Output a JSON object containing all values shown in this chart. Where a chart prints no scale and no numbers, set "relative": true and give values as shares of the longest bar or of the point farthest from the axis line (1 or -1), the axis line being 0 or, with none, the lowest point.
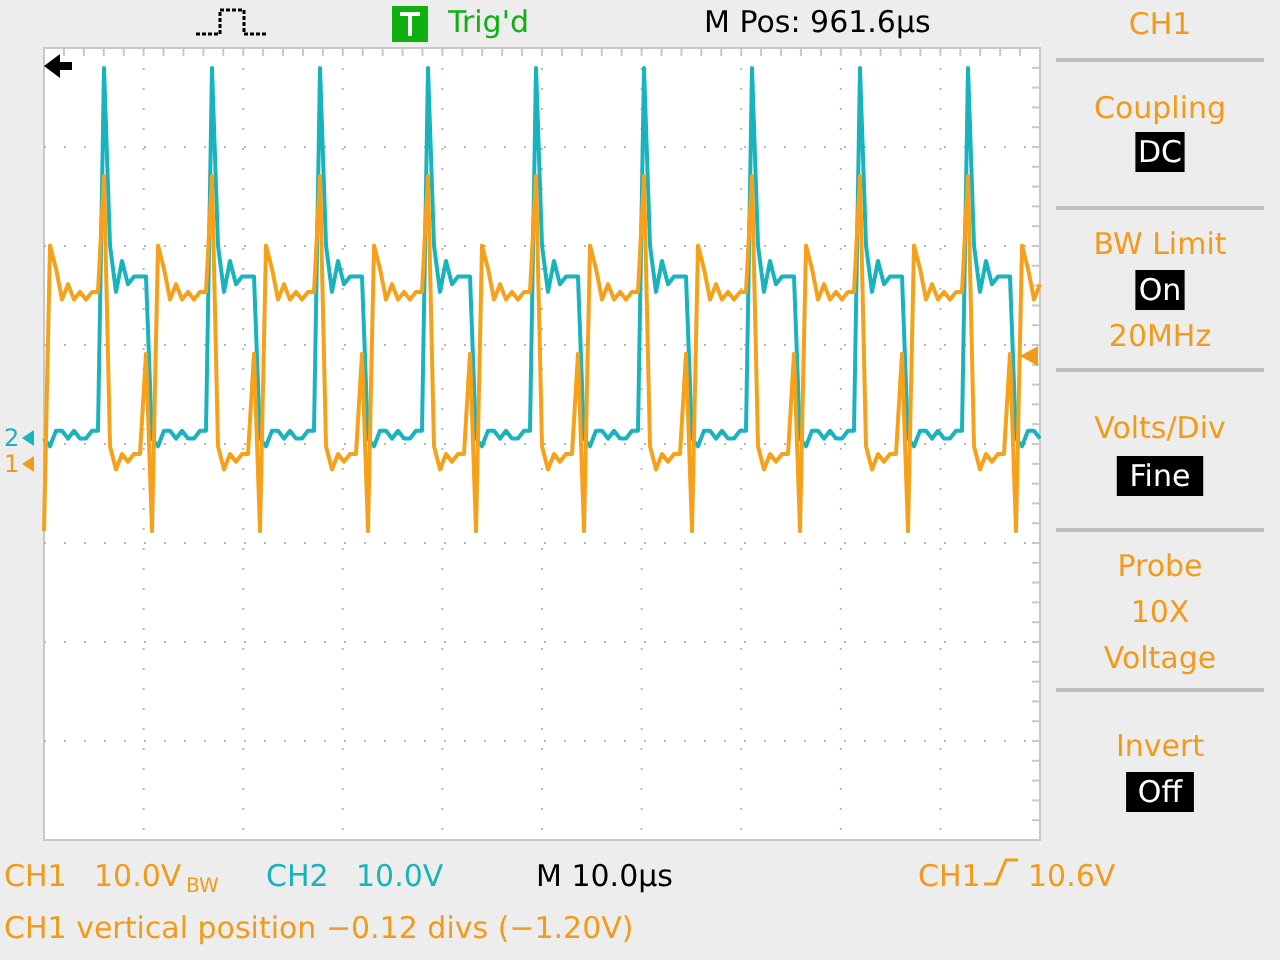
{
  "chart_data": {
    "type": "line",
    "relative": true,
    "grid": true,
    "line_style": "solid",
    "categories": [
      null,
      null,
      null,
      null,
      null,
      null,
      null,
      null,
      null,
      null,
      null,
      null,
      null,
      null,
      null,
      null,
      null,
      null,
      null,
      null,
      null,
      null,
      null,
      null,
      null,
      null,
      null,
      null,
      null,
      null,
      null,
      null,
      null,
      null,
      null,
      null,
      null,
      null,
      null,
      null,
      null,
      null,
      null,
      null,
      null,
      null,
      null,
      null,
      null,
      null,
      null,
      null,
      null,
      null,
      null,
      null,
      null,
      null,
      null,
      null,
      null,
      null,
      null,
      null,
      null,
      null,
      null,
      null,
      null,
      null,
      null,
      null,
      null,
      null,
      null,
      null,
      null,
      null,
      null,
      null,
      null,
      null,
      null,
      null,
      null,
      null,
      null,
      null,
      null,
      null,
      null,
      null,
      null,
      null,
      null,
      null,
      null,
      null,
      null,
      null,
      null,
      null,
      null,
      null,
      null,
      null,
      null,
      null,
      null,
      null,
      null,
      null,
      null,
      null,
      null,
      null,
      null,
      null,
      null,
      null,
      null,
      null,
      null,
      null,
      null,
      null,
      null,
      null,
      null,
      null,
      null,
      null,
      null,
      null,
      null,
      null,
      null,
      null,
      null,
      null,
      null,
      null,
      null,
      null,
      null,
      null,
      null,
      null,
      null,
      null,
      null,
      null,
      null,
      null,
      null,
      null,
      null,
      null,
      null,
      null,
      null,
      null,
      null,
      null,
      null,
      null,
      null
    ],
    "series": [
      {
        "color": "#19b3bd",
        "values": [
          0.52,
          0.51,
          0.53,
          0.53,
          0.52,
          0.53,
          0.52,
          0.52,
          0.53,
          0.53,
          1.0,
          0.77,
          0.71,
          0.75,
          0.72,
          0.73,
          0.73,
          0.73,
          0.52,
          0.51,
          0.53,
          0.53,
          0.52,
          0.53,
          0.52,
          0.52,
          0.53,
          0.53,
          1.0,
          0.77,
          0.71,
          0.75,
          0.72,
          0.73,
          0.73,
          0.73,
          0.52,
          0.51,
          0.53,
          0.53,
          0.52,
          0.53,
          0.52,
          0.52,
          0.53,
          0.53,
          1.0,
          0.77,
          0.71,
          0.75,
          0.72,
          0.73,
          0.73,
          0.73,
          0.52,
          0.51,
          0.53,
          0.53,
          0.52,
          0.53,
          0.52,
          0.52,
          0.53,
          0.53,
          1.0,
          0.77,
          0.71,
          0.75,
          0.72,
          0.73,
          0.73,
          0.73,
          0.52,
          0.51,
          0.53,
          0.53,
          0.52,
          0.53,
          0.52,
          0.52,
          0.53,
          0.53,
          1.0,
          0.77,
          0.71,
          0.75,
          0.72,
          0.73,
          0.73,
          0.73,
          0.52,
          0.51,
          0.53,
          0.53,
          0.52,
          0.53,
          0.52,
          0.52,
          0.53,
          0.53,
          1.0,
          0.77,
          0.71,
          0.75,
          0.72,
          0.73,
          0.73,
          0.73,
          0.52,
          0.51,
          0.53,
          0.53,
          0.52,
          0.53,
          0.52,
          0.52,
          0.53,
          0.53,
          1.0,
          0.77,
          0.71,
          0.75,
          0.72,
          0.73,
          0.73,
          0.73,
          0.52,
          0.51,
          0.53,
          0.53,
          0.52,
          0.53,
          0.52,
          0.52,
          0.53,
          0.53,
          1.0,
          0.77,
          0.71,
          0.75,
          0.72,
          0.73,
          0.73,
          0.73,
          0.52,
          0.51,
          0.53,
          0.53,
          0.52,
          0.53,
          0.52,
          0.52,
          0.53,
          0.53,
          1.0,
          0.77,
          0.71,
          0.75,
          0.72,
          0.73,
          0.73,
          0.73,
          0.52,
          0.51,
          0.53,
          0.53,
          0.52
        ]
      },
      {
        "color": "#f7a11a",
        "values": [
          0.4,
          0.77,
          0.74,
          0.7,
          0.72,
          0.7,
          0.71,
          0.7,
          0.71,
          0.71,
          0.86,
          0.51,
          0.48,
          0.5,
          0.49,
          0.5,
          0.5,
          0.63,
          0.4,
          0.77,
          0.74,
          0.7,
          0.72,
          0.7,
          0.71,
          0.7,
          0.71,
          0.71,
          0.86,
          0.51,
          0.48,
          0.5,
          0.49,
          0.5,
          0.5,
          0.63,
          0.4,
          0.77,
          0.74,
          0.7,
          0.72,
          0.7,
          0.71,
          0.7,
          0.71,
          0.71,
          0.86,
          0.51,
          0.48,
          0.5,
          0.49,
          0.5,
          0.5,
          0.63,
          0.4,
          0.77,
          0.74,
          0.7,
          0.72,
          0.7,
          0.71,
          0.7,
          0.71,
          0.71,
          0.86,
          0.51,
          0.48,
          0.5,
          0.49,
          0.5,
          0.5,
          0.63,
          0.4,
          0.77,
          0.74,
          0.7,
          0.72,
          0.7,
          0.71,
          0.7,
          0.71,
          0.71,
          0.86,
          0.51,
          0.48,
          0.5,
          0.49,
          0.5,
          0.5,
          0.63,
          0.4,
          0.77,
          0.74,
          0.7,
          0.72,
          0.7,
          0.71,
          0.7,
          0.71,
          0.71,
          0.86,
          0.51,
          0.48,
          0.5,
          0.49,
          0.5,
          0.5,
          0.63,
          0.4,
          0.77,
          0.74,
          0.7,
          0.72,
          0.7,
          0.71,
          0.7,
          0.71,
          0.71,
          0.86,
          0.51,
          0.48,
          0.5,
          0.49,
          0.5,
          0.5,
          0.63,
          0.4,
          0.77,
          0.74,
          0.7,
          0.72,
          0.7,
          0.71,
          0.7,
          0.71,
          0.71,
          0.86,
          0.51,
          0.48,
          0.5,
          0.49,
          0.5,
          0.5,
          0.63,
          0.4,
          0.77,
          0.74,
          0.7,
          0.72,
          0.7,
          0.71,
          0.7,
          0.71,
          0.71,
          0.86,
          0.51,
          0.48,
          0.5,
          0.49,
          0.5,
          0.5,
          0.63,
          0.4,
          0.77,
          0.74,
          0.7,
          0.72
        ]
      }
    ],
    "annotations": [
      "Trig'd",
      "M Pos: 961.6µs",
      "CH1",
      "Coupling",
      "DC",
      "BW Limit",
      "On",
      "20MHz",
      "Volts/Div",
      "Fine",
      "Probe",
      "10X",
      "Voltage",
      "Invert",
      "Off",
      "CH1",
      "10.0V",
      "BW",
      "CH2",
      "10.0V",
      "M 10.0µs",
      "CH1",
      "10.6V",
      "CH1 vertical position −0.12 divs (−1.20V)",
      "2",
      "1"
    ]
  }
}
